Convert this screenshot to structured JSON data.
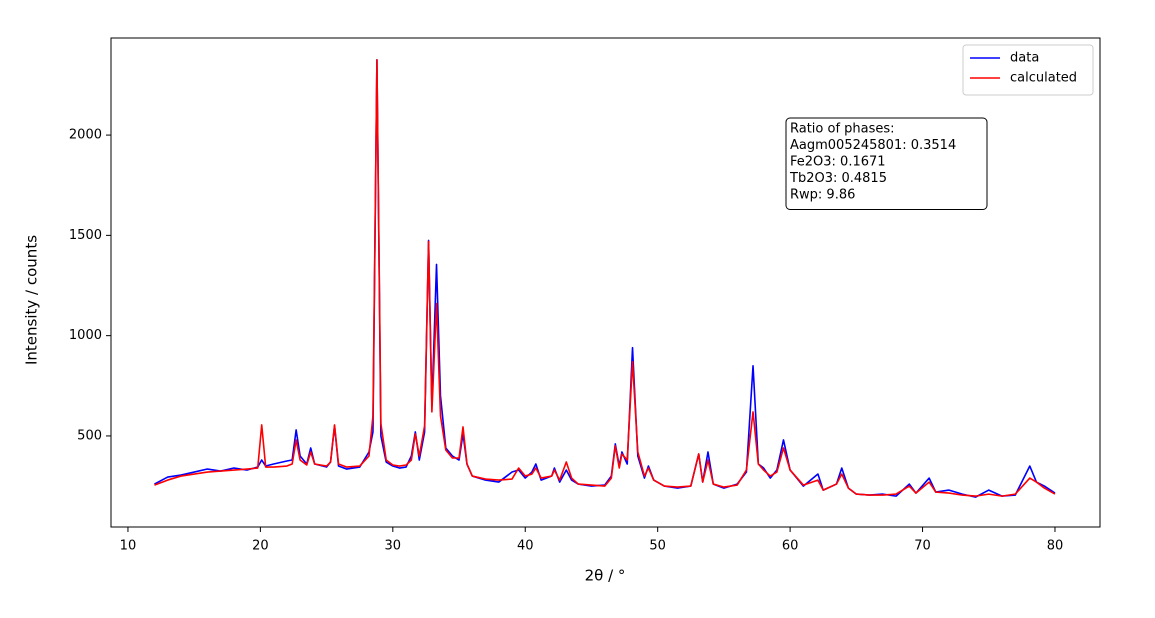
{
  "chart_data": {
    "type": "line",
    "xlabel": "2θ / °",
    "ylabel": "Intensity / counts",
    "x": [
      12,
      13,
      14,
      15,
      16,
      17,
      18,
      19,
      19.8,
      20.1,
      20.4,
      21,
      22,
      22.4,
      22.7,
      23,
      23.5,
      23.8,
      24.1,
      25,
      25.3,
      25.6,
      25.9,
      26.5,
      27.5,
      28.2,
      28.5,
      28.8,
      29.1,
      29.5,
      30,
      30.5,
      31,
      31.4,
      31.7,
      32,
      32.4,
      32.7,
      32.95,
      33.3,
      33.6,
      34,
      34.5,
      35,
      35.3,
      35.6,
      36,
      37,
      38,
      39,
      39.5,
      40,
      40.5,
      40.8,
      41.2,
      42,
      42.2,
      42.6,
      43.1,
      43.5,
      44,
      45,
      46,
      46.5,
      46.8,
      47.1,
      47.3,
      47.7,
      48.1,
      48.5,
      49,
      49.3,
      49.7,
      50.5,
      51.5,
      52.5,
      53.1,
      53.4,
      53.8,
      54.2,
      55,
      56,
      56.7,
      57.2,
      57.6,
      58,
      58.5,
      59,
      59.5,
      60,
      61,
      62.1,
      62.5,
      63.5,
      63.9,
      64.4,
      65,
      66,
      67,
      68,
      69,
      69.5,
      70.5,
      71,
      72,
      73,
      74,
      75,
      76,
      77,
      78.1,
      78.6,
      79.2,
      80
    ],
    "series": [
      {
        "name": "data",
        "color": "#0000ff",
        "values": [
          260,
          295,
          305,
          320,
          335,
          325,
          340,
          330,
          345,
          380,
          350,
          360,
          375,
          380,
          530,
          400,
          360,
          440,
          360,
          345,
          370,
          550,
          350,
          335,
          345,
          420,
          520,
          2375,
          500,
          370,
          350,
          340,
          345,
          400,
          520,
          380,
          520,
          1475,
          650,
          1355,
          700,
          440,
          400,
          380,
          510,
          360,
          300,
          280,
          270,
          320,
          330,
          290,
          320,
          360,
          280,
          300,
          340,
          270,
          330,
          280,
          260,
          250,
          255,
          300,
          460,
          350,
          420,
          360,
          940,
          400,
          290,
          350,
          280,
          250,
          240,
          250,
          410,
          270,
          420,
          260,
          240,
          260,
          320,
          850,
          360,
          340,
          290,
          330,
          480,
          330,
          250,
          310,
          230,
          260,
          340,
          240,
          210,
          205,
          210,
          200,
          260,
          215,
          290,
          220,
          230,
          210,
          195,
          230,
          200,
          205,
          350,
          270,
          250,
          215
        ]
      },
      {
        "name": "calculated",
        "color": "#ff0000",
        "values": [
          255,
          280,
          300,
          310,
          320,
          325,
          330,
          335,
          340,
          555,
          345,
          345,
          350,
          360,
          480,
          380,
          355,
          420,
          360,
          350,
          370,
          555,
          360,
          345,
          350,
          400,
          600,
          2375,
          560,
          380,
          355,
          350,
          355,
          380,
          510,
          400,
          550,
          1470,
          620,
          1160,
          600,
          430,
          390,
          390,
          545,
          360,
          300,
          285,
          280,
          285,
          340,
          300,
          310,
          340,
          290,
          300,
          330,
          280,
          370,
          290,
          260,
          255,
          250,
          290,
          450,
          340,
          410,
          380,
          870,
          420,
          300,
          340,
          280,
          250,
          245,
          250,
          410,
          270,
          380,
          260,
          245,
          255,
          330,
          620,
          360,
          330,
          300,
          320,
          440,
          330,
          255,
          280,
          230,
          260,
          310,
          240,
          210,
          205,
          205,
          210,
          250,
          215,
          270,
          220,
          215,
          205,
          200,
          210,
          200,
          210,
          290,
          270,
          240,
          210
        ]
      }
    ],
    "xlim": [
      8.72,
      83.4
    ],
    "ylim": [
      46,
      2484
    ],
    "xticks": [
      10,
      20,
      30,
      40,
      50,
      60,
      70,
      80
    ],
    "yticks": [
      500,
      1000,
      1500,
      2000
    ],
    "legend": "upper right",
    "annotation": [
      "Ratio of phases:",
      "Aagm005245801: 0.3514",
      "Fe2O3: 0.1671",
      "Tb2O3: 0.4815",
      "Rwp: 9.86"
    ]
  }
}
